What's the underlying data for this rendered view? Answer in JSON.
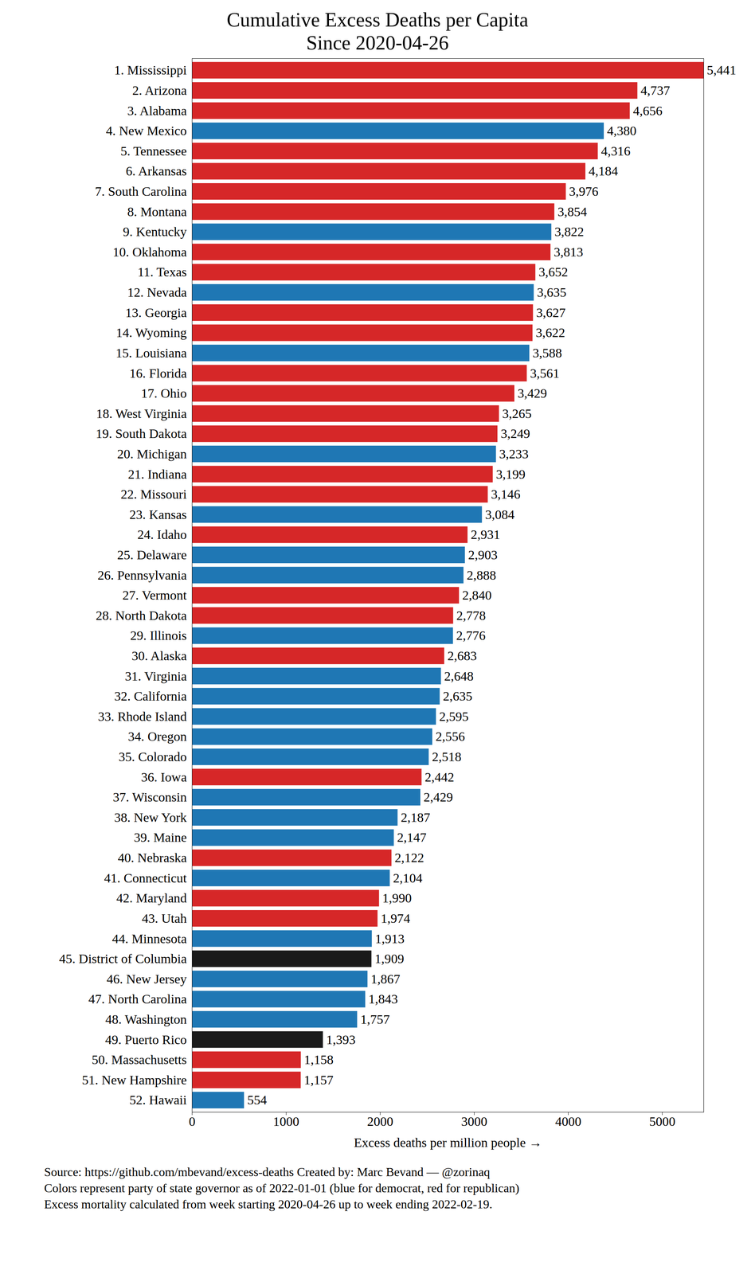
{
  "chart_data": {
    "type": "bar",
    "orientation": "horizontal",
    "title": "Cumulative Excess Deaths per Capita",
    "subtitle": "Since 2020-04-26",
    "xlabel": "Excess deaths per million people",
    "caption": [
      "Source: https://github.com/mbevand/excess-deaths  Created by: Marc Bevand — @zorinaq",
      "Colors represent party of state governor as of 2022-01-01 (blue for democrat, red for republican)",
      "Excess mortality calculated from week starting 2020-04-26 up to week ending 2022-02-19."
    ],
    "categories": [
      "1. Mississippi",
      "2. Arizona",
      "3. Alabama",
      "4. New Mexico",
      "5. Tennessee",
      "6. Arkansas",
      "7. South Carolina",
      "8. Montana",
      "9. Kentucky",
      "10. Oklahoma",
      "11. Texas",
      "12. Nevada",
      "13. Georgia",
      "14. Wyoming",
      "15. Louisiana",
      "16. Florida",
      "17. Ohio",
      "18. West Virginia",
      "19. South Dakota",
      "20. Michigan",
      "21. Indiana",
      "22. Missouri",
      "23. Kansas",
      "24. Idaho",
      "25. Delaware",
      "26. Pennsylvania",
      "27. Vermont",
      "28. North Dakota",
      "29. Illinois",
      "30. Alaska",
      "31. Virginia",
      "32. California",
      "33. Rhode Island",
      "34. Oregon",
      "35. Colorado",
      "36. Iowa",
      "37. Wisconsin",
      "38. New York",
      "39. Maine",
      "40. Nebraska",
      "41. Connecticut",
      "42. Maryland",
      "43. Utah",
      "44. Minnesota",
      "45. District of Columbia",
      "46. New Jersey",
      "47. North Carolina",
      "48. Washington",
      "49. Puerto Rico",
      "50. Massachusetts",
      "51. New Hampshire",
      "52. Hawaii"
    ],
    "values": [
      5441,
      4737,
      4656,
      4380,
      4316,
      4184,
      3976,
      3854,
      3822,
      3813,
      3652,
      3635,
      3627,
      3622,
      3588,
      3561,
      3429,
      3265,
      3249,
      3233,
      3199,
      3146,
      3084,
      2931,
      2903,
      2888,
      2840,
      2778,
      2776,
      2683,
      2648,
      2635,
      2595,
      2556,
      2518,
      2442,
      2429,
      2187,
      2147,
      2122,
      2104,
      1990,
      1974,
      1913,
      1909,
      1867,
      1843,
      1757,
      1393,
      1158,
      1157,
      554
    ],
    "value_labels": [
      "5,441",
      "4,737",
      "4,656",
      "4,380",
      "4,316",
      "4,184",
      "3,976",
      "3,854",
      "3,822",
      "3,813",
      "3,652",
      "3,635",
      "3,627",
      "3,622",
      "3,588",
      "3,561",
      "3,429",
      "3,265",
      "3,249",
      "3,233",
      "3,199",
      "3,146",
      "3,084",
      "2,931",
      "2,903",
      "2,888",
      "2,840",
      "2,778",
      "2,776",
      "2,683",
      "2,648",
      "2,635",
      "2,595",
      "2,556",
      "2,518",
      "2,442",
      "2,429",
      "2,187",
      "2,147",
      "2,122",
      "2,104",
      "1,990",
      "1,974",
      "1,913",
      "1,909",
      "1,867",
      "1,843",
      "1,757",
      "1,393",
      "1,158",
      "1,157",
      "554"
    ],
    "colors": [
      "#d62728",
      "#d62728",
      "#d62728",
      "#1f77b4",
      "#d62728",
      "#d62728",
      "#d62728",
      "#d62728",
      "#1f77b4",
      "#d62728",
      "#d62728",
      "#1f77b4",
      "#d62728",
      "#d62728",
      "#1f77b4",
      "#d62728",
      "#d62728",
      "#d62728",
      "#d62728",
      "#1f77b4",
      "#d62728",
      "#d62728",
      "#1f77b4",
      "#d62728",
      "#1f77b4",
      "#1f77b4",
      "#d62728",
      "#d62728",
      "#1f77b4",
      "#d62728",
      "#1f77b4",
      "#1f77b4",
      "#1f77b4",
      "#1f77b4",
      "#1f77b4",
      "#d62728",
      "#1f77b4",
      "#1f77b4",
      "#1f77b4",
      "#d62728",
      "#1f77b4",
      "#d62728",
      "#d62728",
      "#1f77b4",
      "#1a1a1a",
      "#1f77b4",
      "#1f77b4",
      "#1f77b4",
      "#1a1a1a",
      "#d62728",
      "#d62728",
      "#1f77b4"
    ],
    "xlim": [
      0,
      5441
    ],
    "xticks": [
      0,
      1000,
      2000,
      3000,
      4000,
      5000
    ],
    "data_labels": true,
    "grid": false
  }
}
